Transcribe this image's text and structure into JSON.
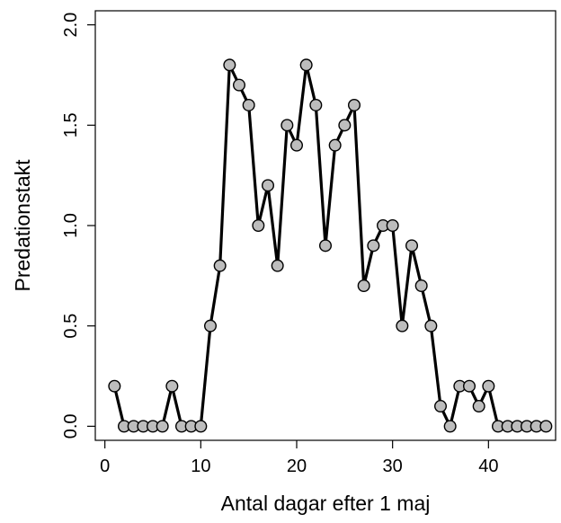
{
  "chart_data": {
    "type": "line",
    "xlabel": "Antal dagar efter 1 maj",
    "ylabel": "Predationstakt",
    "xlim": [
      -1,
      47
    ],
    "ylim": [
      -0.07,
      2.07
    ],
    "xticks": [
      "0",
      "10",
      "20",
      "30",
      "40"
    ],
    "yticks": [
      "0.0",
      "0.5",
      "1.0",
      "1.5",
      "2.0"
    ],
    "grid": false,
    "series": [
      {
        "x": [
          1,
          2,
          3,
          4,
          5,
          6,
          7,
          8,
          9,
          10,
          11,
          12,
          13,
          14,
          15,
          16,
          17,
          18,
          19,
          20,
          21,
          22,
          23,
          24,
          25,
          26,
          27,
          28,
          29,
          30,
          31,
          32,
          33,
          34,
          35,
          36,
          37,
          38,
          39,
          40,
          41,
          42,
          43,
          44,
          45,
          46
        ],
        "values": [
          0.2,
          0,
          0,
          0,
          0,
          0,
          0.2,
          0,
          0,
          0,
          0.5,
          0.8,
          1.8,
          1.7,
          1.6,
          1.0,
          1.2,
          0.8,
          1.5,
          1.4,
          1.8,
          1.6,
          0.9,
          1.4,
          1.5,
          1.6,
          0.7,
          0.9,
          1.0,
          1.0,
          0.5,
          0.9,
          0.7,
          0.5,
          0.1,
          0,
          0.2,
          0.2,
          0.1,
          0.2,
          0,
          0,
          0,
          0,
          0,
          0
        ]
      }
    ]
  }
}
